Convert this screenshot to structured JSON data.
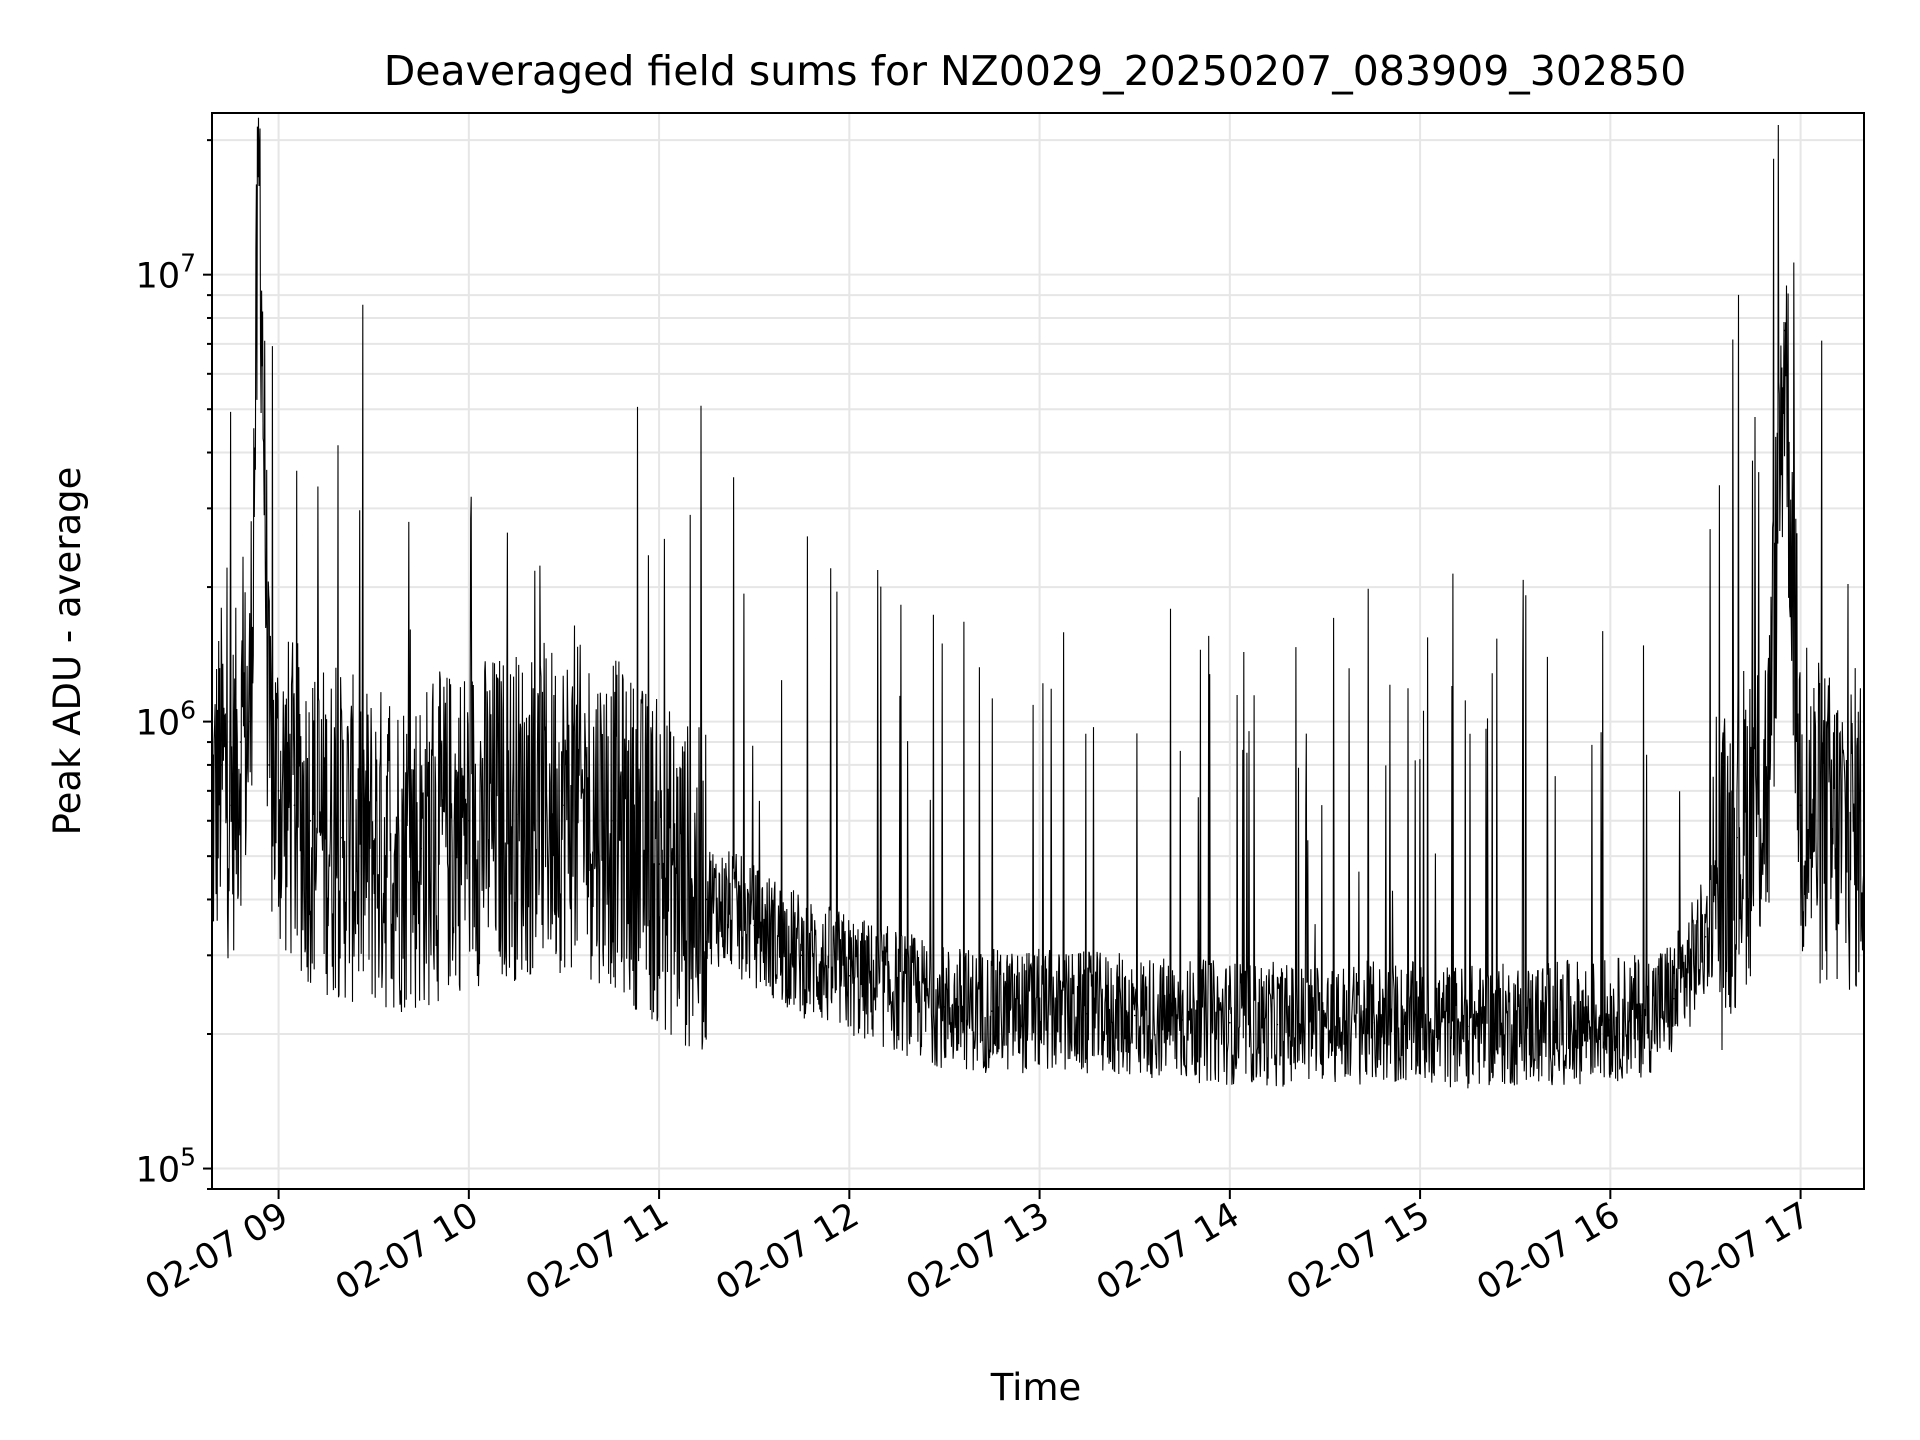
{
  "chart_data": {
    "type": "line",
    "title": "Deaveraged field sums for NZ0029_20250207_083909_302850",
    "xlabel": "Time",
    "ylabel": "Peak ADU - average",
    "y_scale": "log",
    "grid": true,
    "line_color": "#000000",
    "xlim": [
      "2025-02-07 08:39",
      "2025-02-07 17:20"
    ],
    "ylim": [
      90000,
      23000000
    ],
    "x_ticks": [
      {
        "value": "2025-02-07 09:00",
        "label": "02-07 09"
      },
      {
        "value": "2025-02-07 10:00",
        "label": "02-07 10"
      },
      {
        "value": "2025-02-07 11:00",
        "label": "02-07 11"
      },
      {
        "value": "2025-02-07 12:00",
        "label": "02-07 12"
      },
      {
        "value": "2025-02-07 13:00",
        "label": "02-07 13"
      },
      {
        "value": "2025-02-07 14:00",
        "label": "02-07 14"
      },
      {
        "value": "2025-02-07 15:00",
        "label": "02-07 15"
      },
      {
        "value": "2025-02-07 16:00",
        "label": "02-07 16"
      },
      {
        "value": "2025-02-07 17:00",
        "label": "02-07 17"
      }
    ],
    "y_ticks": [
      {
        "value": 100000,
        "base": "10",
        "exp": "5"
      },
      {
        "value": 1000000,
        "base": "10",
        "exp": "6"
      },
      {
        "value": 10000000,
        "base": "10",
        "exp": "7"
      }
    ],
    "series": [
      {
        "x": [
          "2025-02-07 08:39",
          "2025-02-07 08:42",
          "2025-02-07 08:45",
          "2025-02-07 08:48",
          "2025-02-07 08:51",
          "2025-02-07 08:54",
          "2025-02-07 08:57",
          "2025-02-07 09:00",
          "2025-02-07 09:05",
          "2025-02-07 09:10",
          "2025-02-07 09:20",
          "2025-02-07 09:30",
          "2025-02-07 09:45",
          "2025-02-07 10:00",
          "2025-02-07 10:15",
          "2025-02-07 10:30",
          "2025-02-07 10:45",
          "2025-02-07 11:00",
          "2025-02-07 11:15",
          "2025-02-07 11:30",
          "2025-02-07 11:45",
          "2025-02-07 12:00",
          "2025-02-07 12:15",
          "2025-02-07 12:30",
          "2025-02-07 12:45",
          "2025-02-07 13:00",
          "2025-02-07 13:15",
          "2025-02-07 13:30",
          "2025-02-07 13:45",
          "2025-02-07 14:00",
          "2025-02-07 14:15",
          "2025-02-07 14:30",
          "2025-02-07 14:45",
          "2025-02-07 15:00",
          "2025-02-07 15:15",
          "2025-02-07 15:30",
          "2025-02-07 15:45",
          "2025-02-07 16:00",
          "2025-02-07 16:10",
          "2025-02-07 16:20",
          "2025-02-07 16:30",
          "2025-02-07 16:40",
          "2025-02-07 16:50",
          "2025-02-07 16:55",
          "2025-02-07 17:00",
          "2025-02-07 17:10",
          "2025-02-07 17:20"
        ],
        "y": [
          600000,
          800000,
          650000,
          900000,
          1000000,
          18000000,
          800000,
          700000,
          650000,
          600000,
          550000,
          520000,
          520000,
          600000,
          620000,
          650000,
          600000,
          480000,
          400000,
          350000,
          300000,
          270000,
          250000,
          230000,
          225000,
          225000,
          222000,
          220000,
          215000,
          212000,
          210000,
          210000,
          212000,
          210000,
          208000,
          210000,
          212000,
          215000,
          220000,
          240000,
          330000,
          550000,
          750000,
          7500000,
          650000,
          550000,
          580000
        ]
      }
    ]
  }
}
